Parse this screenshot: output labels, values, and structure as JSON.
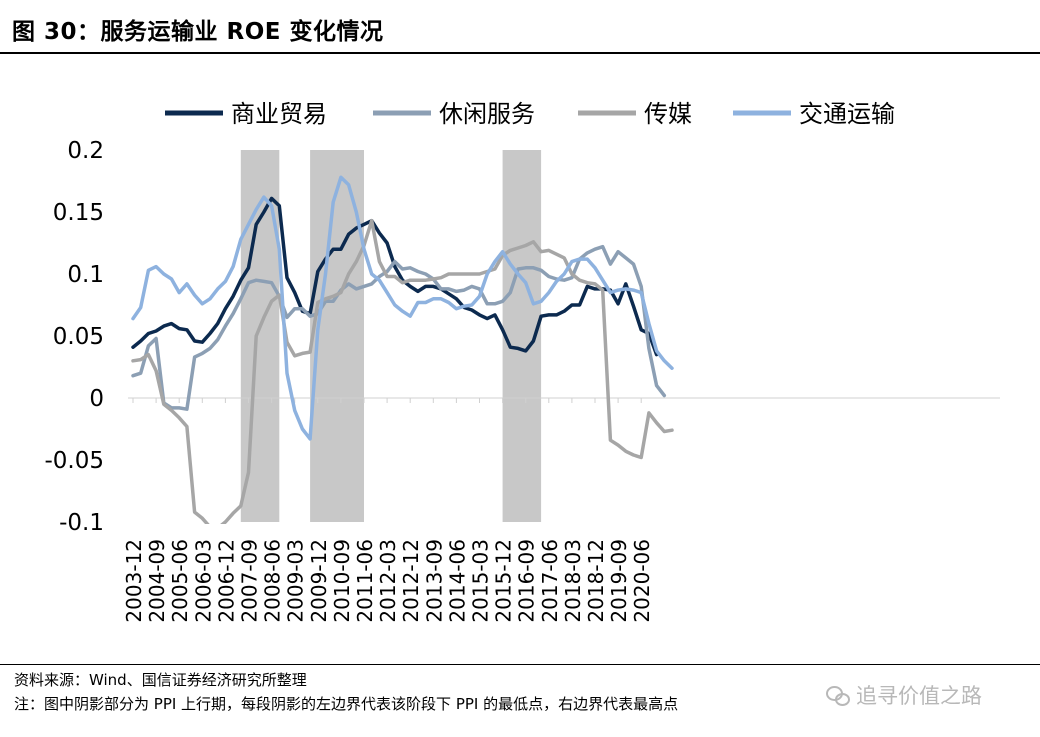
{
  "title": "图 30：服务运输业 ROE 变化情况",
  "source": "资料来源：Wind、国信证券经济研究所整理",
  "note": "注：图中阴影部分为 PPI 上行期，每段阴影的左边界代表该阶段下 PPI 的最低点，右边界代表最高点",
  "watermark": "追寻价值之路",
  "watermark_icon": "wechat-icon",
  "chart_data": {
    "type": "line",
    "title": "",
    "xlabel": "",
    "ylabel": "",
    "ylim": [
      -0.1,
      0.2
    ],
    "yticks": [
      "0.2",
      "0.15",
      "0.1",
      "0.05",
      "0",
      "-0.05",
      "-0.1"
    ],
    "ytick_values": [
      0.2,
      0.15,
      0.1,
      0.05,
      0,
      -0.05,
      -0.1
    ],
    "xtick_labels": [
      "2003-12",
      "2004-09",
      "2005-06",
      "2006-03",
      "2006-12",
      "2007-09",
      "2008-06",
      "2009-03",
      "2009-12",
      "2010-09",
      "2011-06",
      "2012-03",
      "2012-12",
      "2013-09",
      "2014-06",
      "2015-03",
      "2015-12",
      "2016-09",
      "2017-06",
      "2018-03",
      "2018-12",
      "2019-09",
      "2020-06"
    ],
    "x_start": "2003-12",
    "x_step": "quarter",
    "grid": false,
    "legend_position": "top",
    "shaded_periods": [
      [
        "2007-06",
        "2008-09"
      ],
      [
        "2009-09",
        "2011-06"
      ],
      [
        "2015-12",
        "2017-03"
      ]
    ],
    "shade_color": "#c8c8c8",
    "series": [
      {
        "name": "商业贸易",
        "color": "#0c2a4f",
        "values": [
          0.041,
          0.046,
          0.052,
          0.054,
          0.058,
          0.06,
          0.056,
          0.055,
          0.046,
          0.045,
          0.052,
          0.06,
          0.072,
          0.082,
          0.095,
          0.105,
          0.14,
          0.15,
          0.161,
          0.155,
          0.097,
          0.085,
          0.07,
          0.068,
          0.102,
          0.112,
          0.12,
          0.12,
          0.132,
          0.137,
          0.14,
          0.143,
          0.133,
          0.125,
          0.106,
          0.095,
          0.09,
          0.086,
          0.09,
          0.09,
          0.088,
          0.084,
          0.08,
          0.073,
          0.071,
          0.067,
          0.064,
          0.067,
          0.055,
          0.041,
          0.04,
          0.038,
          0.046,
          0.066,
          0.067,
          0.067,
          0.07,
          0.075,
          0.075,
          0.09,
          0.088,
          0.088,
          0.087,
          0.076,
          0.092,
          0.074,
          0.055,
          0.052,
          0.035
        ]
      },
      {
        "name": "休闲服务",
        "color": "#8c9fb4",
        "values": [
          0.018,
          0.02,
          0.042,
          0.048,
          -0.004,
          -0.008,
          -0.008,
          -0.009,
          0.033,
          0.036,
          0.04,
          0.047,
          0.058,
          0.068,
          0.08,
          0.093,
          0.095,
          0.094,
          0.093,
          0.082,
          0.065,
          0.072,
          0.072,
          0.066,
          0.068,
          0.078,
          0.078,
          0.087,
          0.092,
          0.088,
          0.09,
          0.092,
          0.098,
          0.102,
          0.11,
          0.104,
          0.105,
          0.102,
          0.1,
          0.096,
          0.088,
          0.088,
          0.086,
          0.087,
          0.09,
          0.088,
          0.076,
          0.076,
          0.078,
          0.085,
          0.104,
          0.105,
          0.105,
          0.103,
          0.098,
          0.096,
          0.095,
          0.097,
          0.112,
          0.117,
          0.12,
          0.122,
          0.108,
          0.118,
          0.113,
          0.108,
          0.09,
          0.04,
          0.01,
          0.002
        ]
      },
      {
        "name": "传媒",
        "color": "#a6a6a6",
        "values": [
          0.03,
          0.031,
          0.035,
          0.022,
          -0.005,
          -0.01,
          -0.016,
          -0.023,
          -0.092,
          -0.097,
          -0.104,
          -0.105,
          -0.1,
          -0.093,
          -0.087,
          -0.06,
          0.05,
          0.065,
          0.078,
          0.083,
          0.045,
          0.034,
          0.036,
          0.037,
          0.077,
          0.08,
          0.082,
          0.085,
          0.1,
          0.11,
          0.123,
          0.143,
          0.11,
          0.098,
          0.098,
          0.093,
          0.095,
          0.095,
          0.095,
          0.096,
          0.097,
          0.1,
          0.1,
          0.1,
          0.1,
          0.1,
          0.102,
          0.104,
          0.115,
          0.119,
          0.121,
          0.123,
          0.126,
          0.118,
          0.119,
          0.116,
          0.113,
          0.1,
          0.095,
          0.093,
          0.092,
          0.087,
          -0.034,
          -0.038,
          -0.043,
          -0.046,
          -0.048,
          -0.012,
          -0.02,
          -0.027,
          -0.026
        ]
      },
      {
        "name": "交通运输",
        "color": "#8eb2df",
        "values": [
          0.064,
          0.073,
          0.103,
          0.106,
          0.1,
          0.096,
          0.085,
          0.092,
          0.083,
          0.076,
          0.08,
          0.088,
          0.094,
          0.106,
          0.128,
          0.14,
          0.152,
          0.162,
          0.155,
          0.12,
          0.02,
          -0.01,
          -0.025,
          -0.033,
          0.055,
          0.1,
          0.158,
          0.178,
          0.172,
          0.15,
          0.12,
          0.1,
          0.095,
          0.085,
          0.075,
          0.07,
          0.066,
          0.077,
          0.077,
          0.08,
          0.08,
          0.077,
          0.072,
          0.074,
          0.075,
          0.082,
          0.1,
          0.11,
          0.118,
          0.108,
          0.1,
          0.093,
          0.076,
          0.078,
          0.085,
          0.094,
          0.1,
          0.11,
          0.112,
          0.112,
          0.105,
          0.095,
          0.085,
          0.087,
          0.088,
          0.087,
          0.085,
          0.06,
          0.038,
          0.03,
          0.024
        ]
      }
    ]
  }
}
